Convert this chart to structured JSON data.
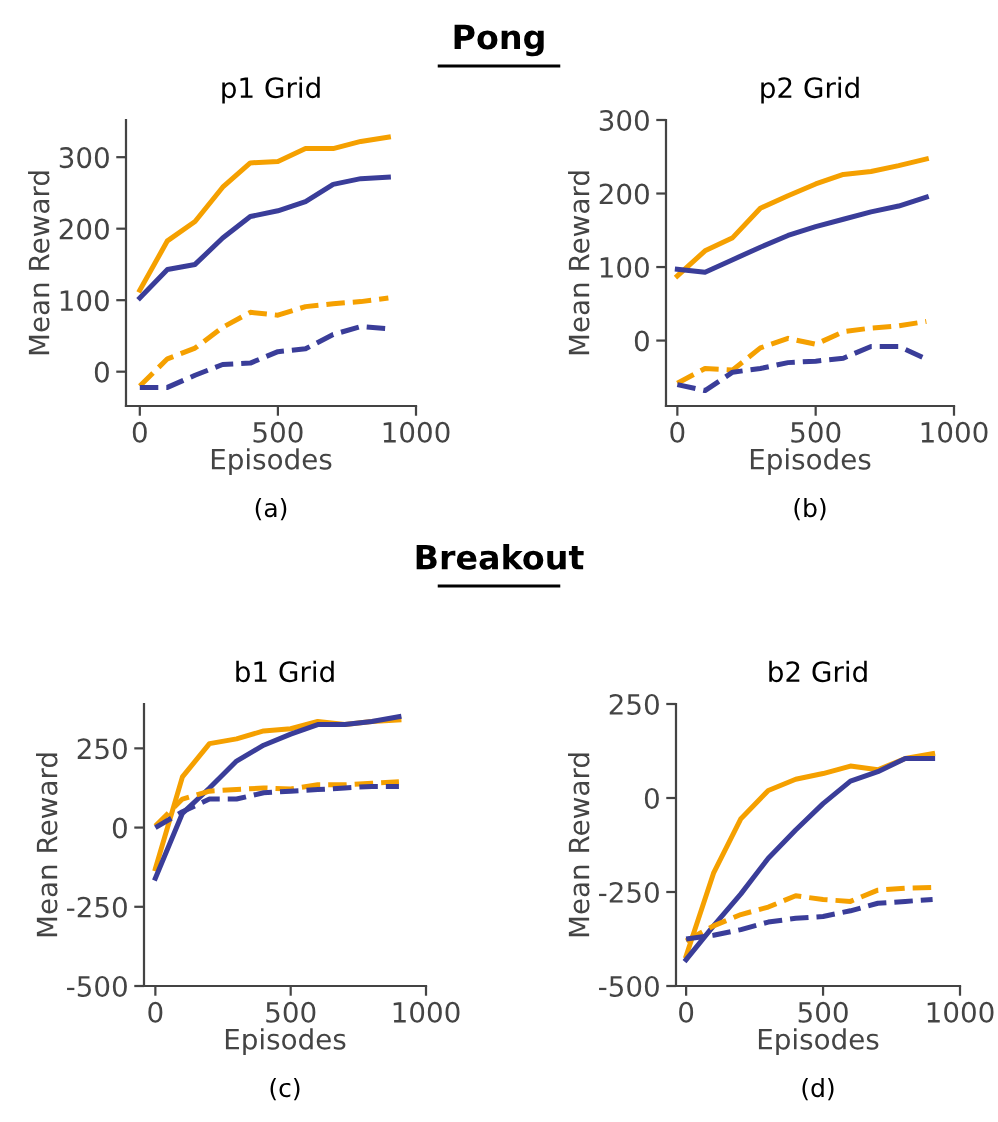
{
  "chart_data": [
    {
      "type": "line",
      "subtitle": "Pong",
      "title": "p1 Grid",
      "xlabel": "Episodes",
      "ylabel": "Mean Reward",
      "annotations": [
        "(a)"
      ],
      "x": [
        0,
        100,
        200,
        300,
        400,
        500,
        600,
        700,
        800,
        900
      ],
      "xlim": [
        -50,
        1000
      ],
      "xticks": [
        0,
        500,
        1000
      ],
      "ylim": [
        -48,
        352
      ],
      "yticks": [
        0,
        100,
        200,
        300
      ],
      "grid": false,
      "legend": false,
      "series": [
        {
          "color": "#f5a000",
          "line_style": "solid",
          "values": [
            114,
            183,
            210,
            258,
            292,
            294,
            312,
            312,
            322,
            328
          ]
        },
        {
          "color": "#3a3d99",
          "line_style": "solid",
          "values": [
            103,
            143,
            150,
            187,
            217,
            225,
            238,
            262,
            270,
            272
          ]
        },
        {
          "color": "#f5a000",
          "line_style": "dashed",
          "values": [
            -20,
            18,
            33,
            62,
            83,
            79,
            91,
            95,
            98,
            103
          ]
        },
        {
          "color": "#3a3d99",
          "line_style": "dashed",
          "values": [
            -22,
            -22,
            -5,
            10,
            12,
            28,
            32,
            52,
            63,
            60
          ]
        }
      ]
    },
    {
      "type": "line",
      "title": "p2 Grid",
      "xlabel": "Episodes",
      "ylabel": "Mean Reward",
      "annotations": [
        "(b)"
      ],
      "x": [
        0,
        100,
        200,
        300,
        400,
        500,
        600,
        700,
        800,
        900
      ],
      "xlim": [
        -41,
        1000
      ],
      "xticks": [
        0,
        500,
        1000
      ],
      "ylim": [
        -89,
        300
      ],
      "yticks": [
        0,
        100,
        200,
        300
      ],
      "grid": false,
      "legend": false,
      "series": [
        {
          "color": "#f5a000",
          "line_style": "solid",
          "values": [
            88,
            122,
            140,
            180,
            197,
            213,
            226,
            230,
            238,
            247
          ]
        },
        {
          "color": "#3a3d99",
          "line_style": "solid",
          "values": [
            97,
            93,
            110,
            127,
            143,
            155,
            165,
            175,
            183,
            195
          ]
        },
        {
          "color": "#f5a000",
          "line_style": "dashed",
          "values": [
            -58,
            -38,
            -40,
            -10,
            3,
            -5,
            12,
            17,
            20,
            26
          ]
        },
        {
          "color": "#3a3d99",
          "line_style": "dashed",
          "values": [
            -60,
            -68,
            -43,
            -38,
            -30,
            -28,
            -24,
            -8,
            -8,
            -25
          ]
        }
      ]
    },
    {
      "type": "line",
      "subtitle": "Breakout",
      "title": "b1 Grid",
      "xlabel": "Episodes",
      "ylabel": "Mean Reward",
      "annotations": [
        "(c)"
      ],
      "x": [
        0,
        100,
        200,
        300,
        400,
        500,
        600,
        700,
        800,
        900
      ],
      "xlim": [
        -42,
        1000
      ],
      "xticks": [
        0,
        500,
        1000
      ],
      "ylim": [
        -500,
        390
      ],
      "yticks": [
        -500,
        -250,
        0,
        250
      ],
      "grid": false,
      "legend": false,
      "series": [
        {
          "color": "#f5a000",
          "line_style": "solid",
          "values": [
            -130,
            160,
            265,
            280,
            305,
            312,
            335,
            325,
            335,
            340
          ]
        },
        {
          "color": "#3a3d99",
          "line_style": "solid",
          "values": [
            -160,
            45,
            125,
            210,
            260,
            295,
            325,
            325,
            335,
            350
          ]
        },
        {
          "color": "#f5a000",
          "line_style": "dashed",
          "values": [
            5,
            90,
            115,
            120,
            125,
            122,
            135,
            135,
            140,
            145
          ]
        },
        {
          "color": "#3a3d99",
          "line_style": "dashed",
          "values": [
            0,
            50,
            90,
            90,
            110,
            115,
            120,
            125,
            130,
            130
          ]
        }
      ]
    },
    {
      "type": "line",
      "title": "b2 Grid",
      "xlabel": "Episodes",
      "ylabel": "Mean Reward",
      "annotations": [
        "(d)"
      ],
      "x": [
        0,
        100,
        200,
        300,
        400,
        500,
        600,
        700,
        800,
        900
      ],
      "xlim": [
        -37,
        1000
      ],
      "xticks": [
        0,
        500,
        1000
      ],
      "ylim": [
        -500,
        250
      ],
      "yticks": [
        -500,
        -250,
        0,
        250
      ],
      "grid": false,
      "legend": false,
      "series": [
        {
          "color": "#f5a000",
          "line_style": "solid",
          "values": [
            -420,
            -200,
            -55,
            20,
            50,
            65,
            85,
            75,
            105,
            118
          ]
        },
        {
          "color": "#3a3d99",
          "line_style": "solid",
          "values": [
            -430,
            -340,
            -255,
            -160,
            -85,
            -15,
            45,
            70,
            105,
            105
          ]
        },
        {
          "color": "#f5a000",
          "line_style": "dashed",
          "values": [
            -380,
            -340,
            -310,
            -290,
            -260,
            -270,
            -275,
            -245,
            -240,
            -238
          ]
        },
        {
          "color": "#3a3d99",
          "line_style": "dashed",
          "values": [
            -375,
            -365,
            -350,
            -330,
            -320,
            -315,
            -300,
            -280,
            -275,
            -270
          ]
        }
      ]
    }
  ]
}
